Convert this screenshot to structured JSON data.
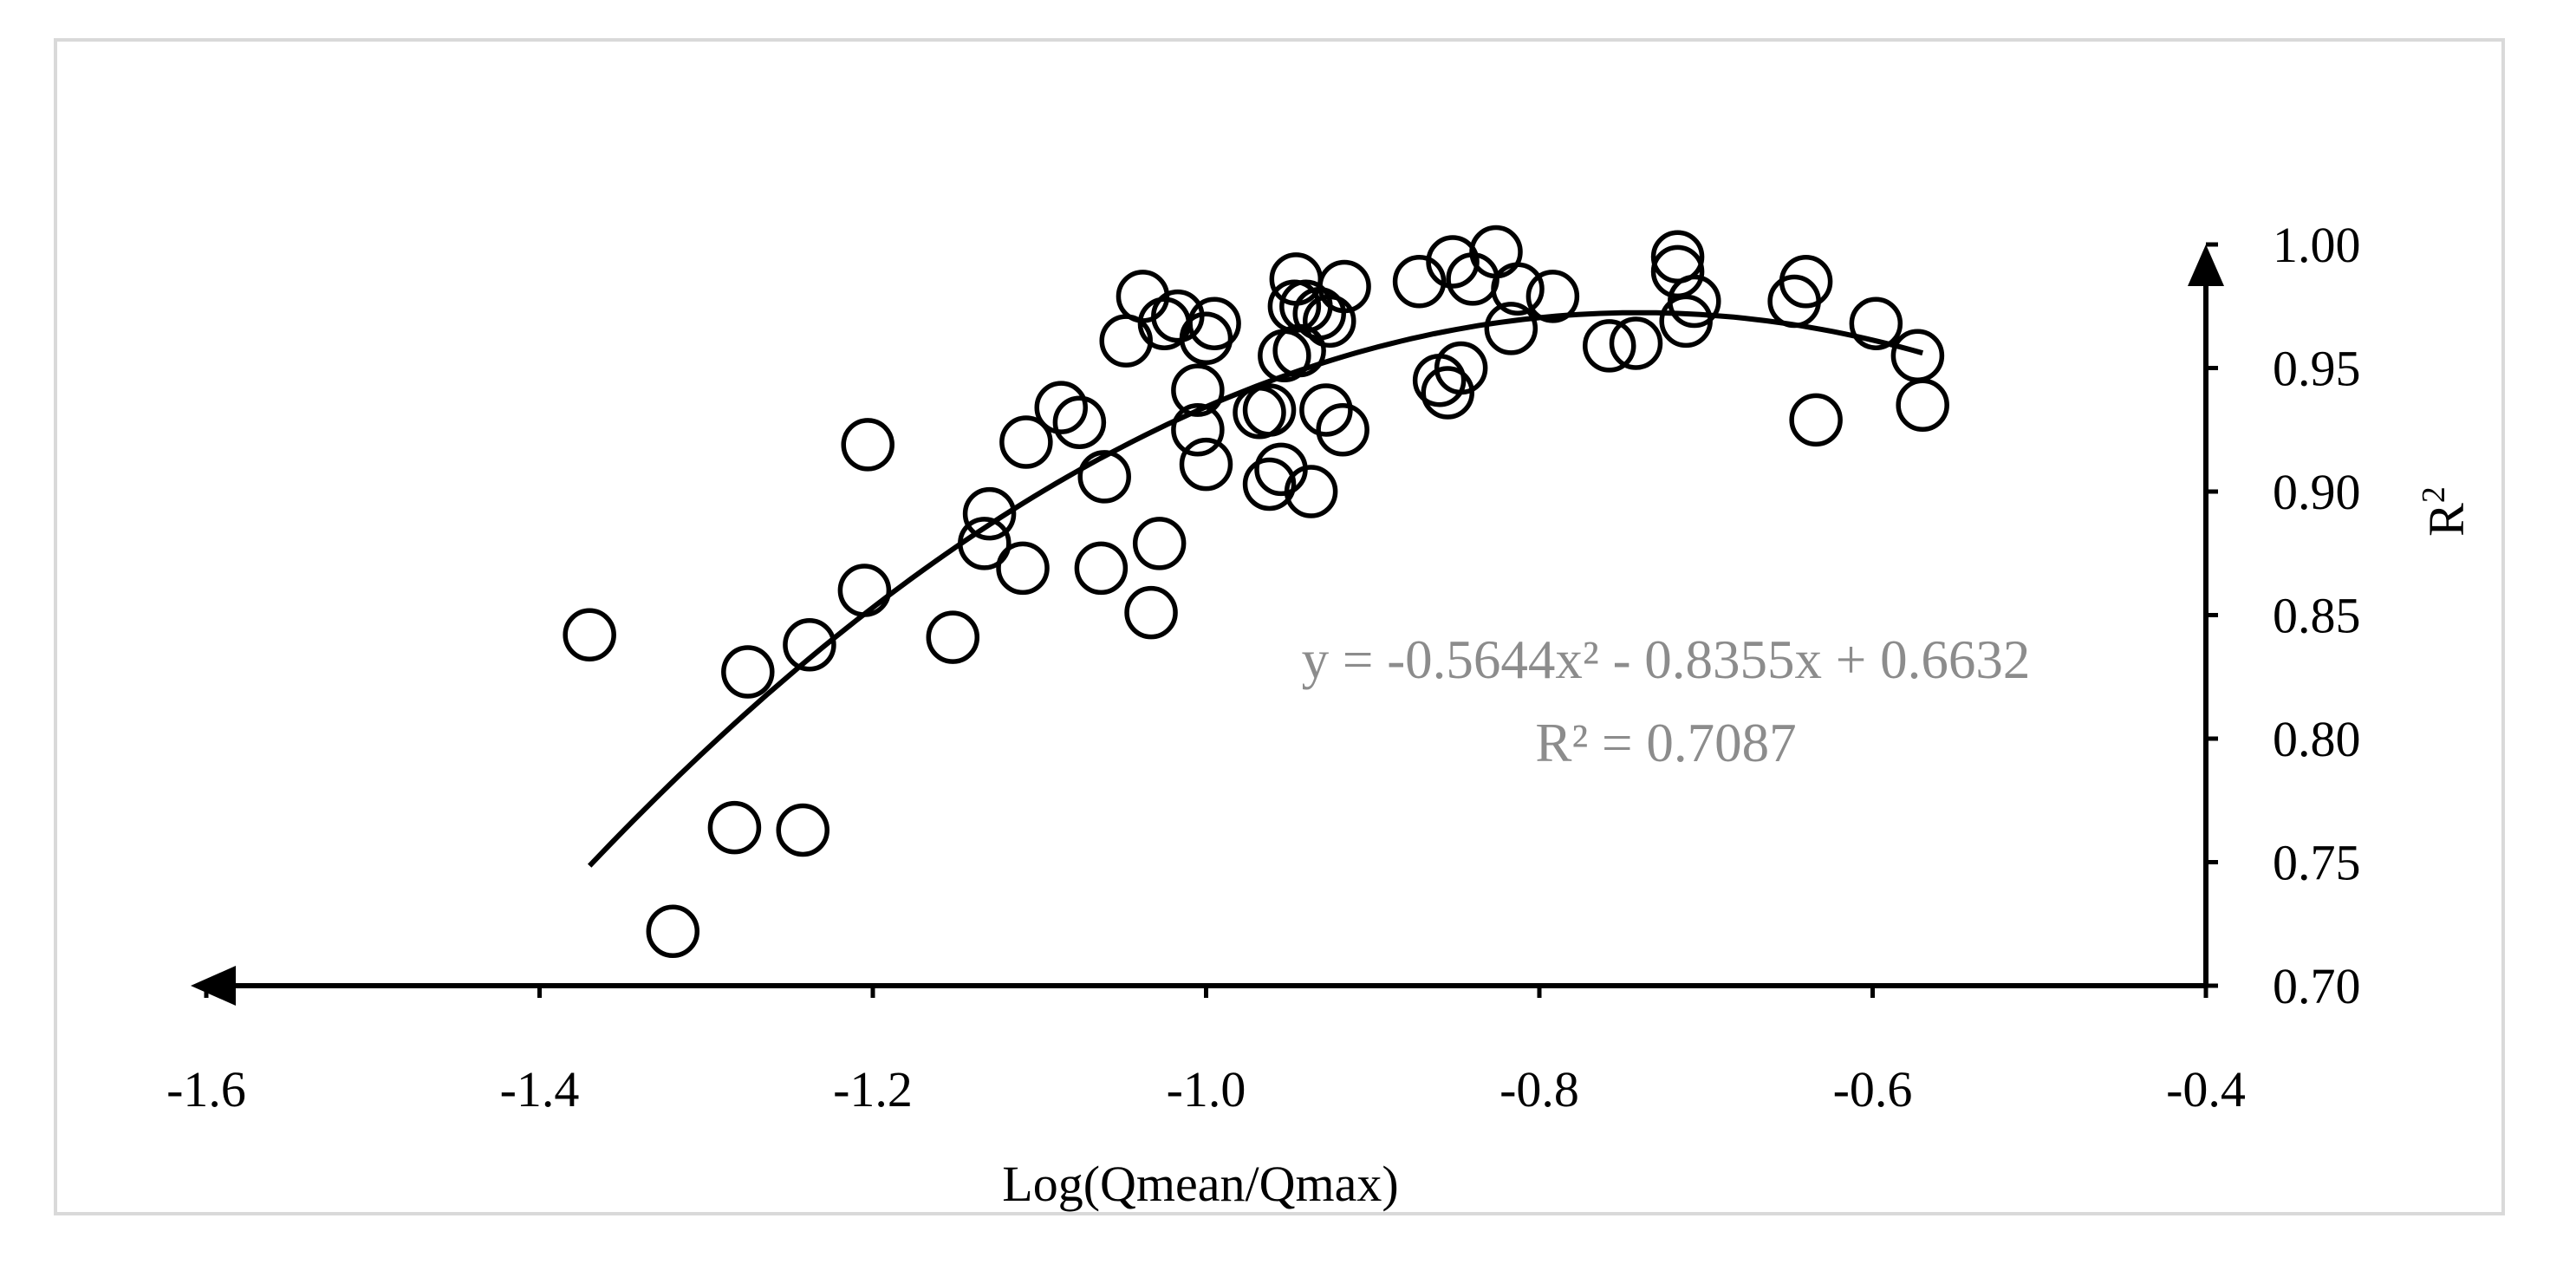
{
  "chart_data": {
    "type": "scatter",
    "title": "",
    "xlabel": "Log(Qmean/Qmax)",
    "ylabel": "R",
    "ylabel_superscript": "2",
    "x_reversed": true,
    "xlim": [
      -1.6,
      -0.4
    ],
    "ylim": [
      0.7,
      1.0
    ],
    "x_ticks": [
      "-1.6",
      "-1.4",
      "-1.2",
      "-1.0",
      "-0.8",
      "-0.6",
      "-0.4"
    ],
    "y_ticks": [
      "0.70",
      "0.75",
      "0.80",
      "0.85",
      "0.90",
      "0.95",
      "1.00"
    ],
    "grid": false,
    "marker": "open-circle",
    "points": [
      {
        "x": -1.37,
        "y": 0.842
      },
      {
        "x": -1.32,
        "y": 0.722
      },
      {
        "x": -1.283,
        "y": 0.764
      },
      {
        "x": -1.275,
        "y": 0.827
      },
      {
        "x": -1.242,
        "y": 0.763
      },
      {
        "x": -1.238,
        "y": 0.838
      },
      {
        "x": -1.205,
        "y": 0.86
      },
      {
        "x": -1.203,
        "y": 0.919
      },
      {
        "x": -1.152,
        "y": 0.841
      },
      {
        "x": -1.133,
        "y": 0.879
      },
      {
        "x": -1.13,
        "y": 0.891
      },
      {
        "x": -1.11,
        "y": 0.869
      },
      {
        "x": -1.108,
        "y": 0.92
      },
      {
        "x": -1.087,
        "y": 0.934
      },
      {
        "x": -1.076,
        "y": 0.928
      },
      {
        "x": -1.063,
        "y": 0.869
      },
      {
        "x": -1.061,
        "y": 0.906
      },
      {
        "x": -1.048,
        "y": 0.961
      },
      {
        "x": -1.038,
        "y": 0.979
      },
      {
        "x": -1.033,
        "y": 0.851
      },
      {
        "x": -1.028,
        "y": 0.879
      },
      {
        "x": -1.025,
        "y": 0.968
      },
      {
        "x": -1.017,
        "y": 0.971
      },
      {
        "x": -1.005,
        "y": 0.941
      },
      {
        "x": -1.005,
        "y": 0.925
      },
      {
        "x": -1.0,
        "y": 0.911
      },
      {
        "x": -1.0,
        "y": 0.962
      },
      {
        "x": -0.995,
        "y": 0.968
      },
      {
        "x": -0.968,
        "y": 0.932
      },
      {
        "x": -0.962,
        "y": 0.933
      },
      {
        "x": -0.962,
        "y": 0.903
      },
      {
        "x": -0.955,
        "y": 0.909
      },
      {
        "x": -0.953,
        "y": 0.955
      },
      {
        "x": -0.947,
        "y": 0.975
      },
      {
        "x": -0.946,
        "y": 0.986
      },
      {
        "x": -0.944,
        "y": 0.957
      },
      {
        "x": -0.94,
        "y": 0.975
      },
      {
        "x": -0.937,
        "y": 0.9
      },
      {
        "x": -0.932,
        "y": 0.972
      },
      {
        "x": -0.928,
        "y": 0.933
      },
      {
        "x": -0.926,
        "y": 0.969
      },
      {
        "x": -0.918,
        "y": 0.925
      },
      {
        "x": -0.917,
        "y": 0.983
      },
      {
        "x": -0.872,
        "y": 0.985
      },
      {
        "x": -0.86,
        "y": 0.945
      },
      {
        "x": -0.855,
        "y": 0.94
      },
      {
        "x": -0.852,
        "y": 0.993
      },
      {
        "x": -0.847,
        "y": 0.95
      },
      {
        "x": -0.84,
        "y": 0.986
      },
      {
        "x": -0.826,
        "y": 0.997
      },
      {
        "x": -0.817,
        "y": 0.966
      },
      {
        "x": -0.813,
        "y": 0.982
      },
      {
        "x": -0.792,
        "y": 0.979
      },
      {
        "x": -0.758,
        "y": 0.959
      },
      {
        "x": -0.742,
        "y": 0.96
      },
      {
        "x": -0.717,
        "y": 0.995
      },
      {
        "x": -0.717,
        "y": 0.989
      },
      {
        "x": -0.712,
        "y": 0.969
      },
      {
        "x": -0.707,
        "y": 0.977
      },
      {
        "x": -0.647,
        "y": 0.977
      },
      {
        "x": -0.64,
        "y": 0.985
      },
      {
        "x": -0.634,
        "y": 0.929
      },
      {
        "x": -0.598,
        "y": 0.968
      },
      {
        "x": -0.573,
        "y": 0.955
      },
      {
        "x": -0.57,
        "y": 0.935
      }
    ],
    "trendline": {
      "type": "polynomial",
      "degree": 2,
      "coefficients": [
        -0.5644,
        -0.8355,
        0.6632
      ],
      "x_range": [
        -1.37,
        -0.57
      ],
      "equation_label": "y = -0.5644x² - 0.8355x + 0.6632",
      "r2_label": "R² = 0.7087",
      "label_color": "#8c8c8c"
    }
  }
}
